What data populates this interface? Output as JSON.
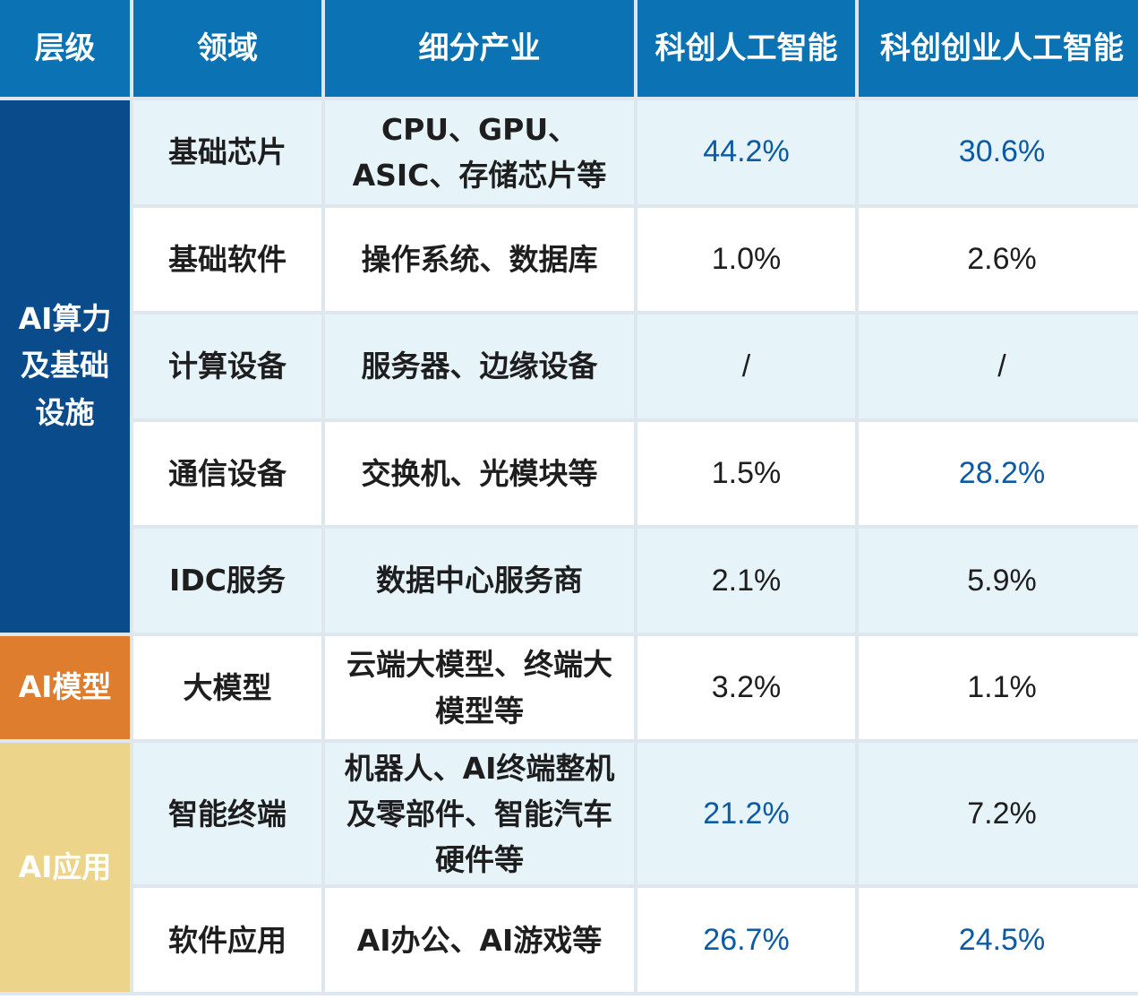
{
  "header": {
    "col_layer": "层级",
    "col_domain": "领域",
    "col_segment": "细分产业",
    "col_index1": "科创人工智能",
    "col_index2": "科创创业人工智能"
  },
  "groups": {
    "infra": "AI算力及基础设施",
    "model": "AI模型",
    "app": "AI应用"
  },
  "rows": [
    {
      "domain": "基础芯片",
      "segment": "CPU、GPU、ASIC、存储芯片等",
      "index1": "44.2%",
      "index2": "30.6%"
    },
    {
      "domain": "基础软件",
      "segment": "操作系统、数据库",
      "index1": "1.0%",
      "index2": "2.6%"
    },
    {
      "domain": "计算设备",
      "segment": "服务器、边缘设备",
      "index1": "/",
      "index2": "/"
    },
    {
      "domain": "通信设备",
      "segment": "交换机、光模块等",
      "index1": "1.5%",
      "index2": "28.2%"
    },
    {
      "domain": "IDC服务",
      "segment": "数据中心服务商",
      "index1": "2.1%",
      "index2": "5.9%"
    },
    {
      "domain": "大模型",
      "segment": "云端大模型、终端大模型等",
      "index1": "3.2%",
      "index2": "1.1%"
    },
    {
      "domain": "智能终端",
      "segment": "机器人、AI终端整机及零部件、智能汽车硬件等",
      "index1": "21.2%",
      "index2": "7.2%"
    },
    {
      "domain": "软件应用",
      "segment": "AI办公、AI游戏等",
      "index1": "26.7%",
      "index2": "24.5%"
    }
  ],
  "colors": {
    "header_bg": "#0b72b3",
    "infra_bg": "#0a4b8c",
    "model_bg": "#de7d2e",
    "app_bg": "#ecd48a",
    "highlight_text": "#0d5aa4",
    "shade_row_bg": "#e6f4fa"
  }
}
